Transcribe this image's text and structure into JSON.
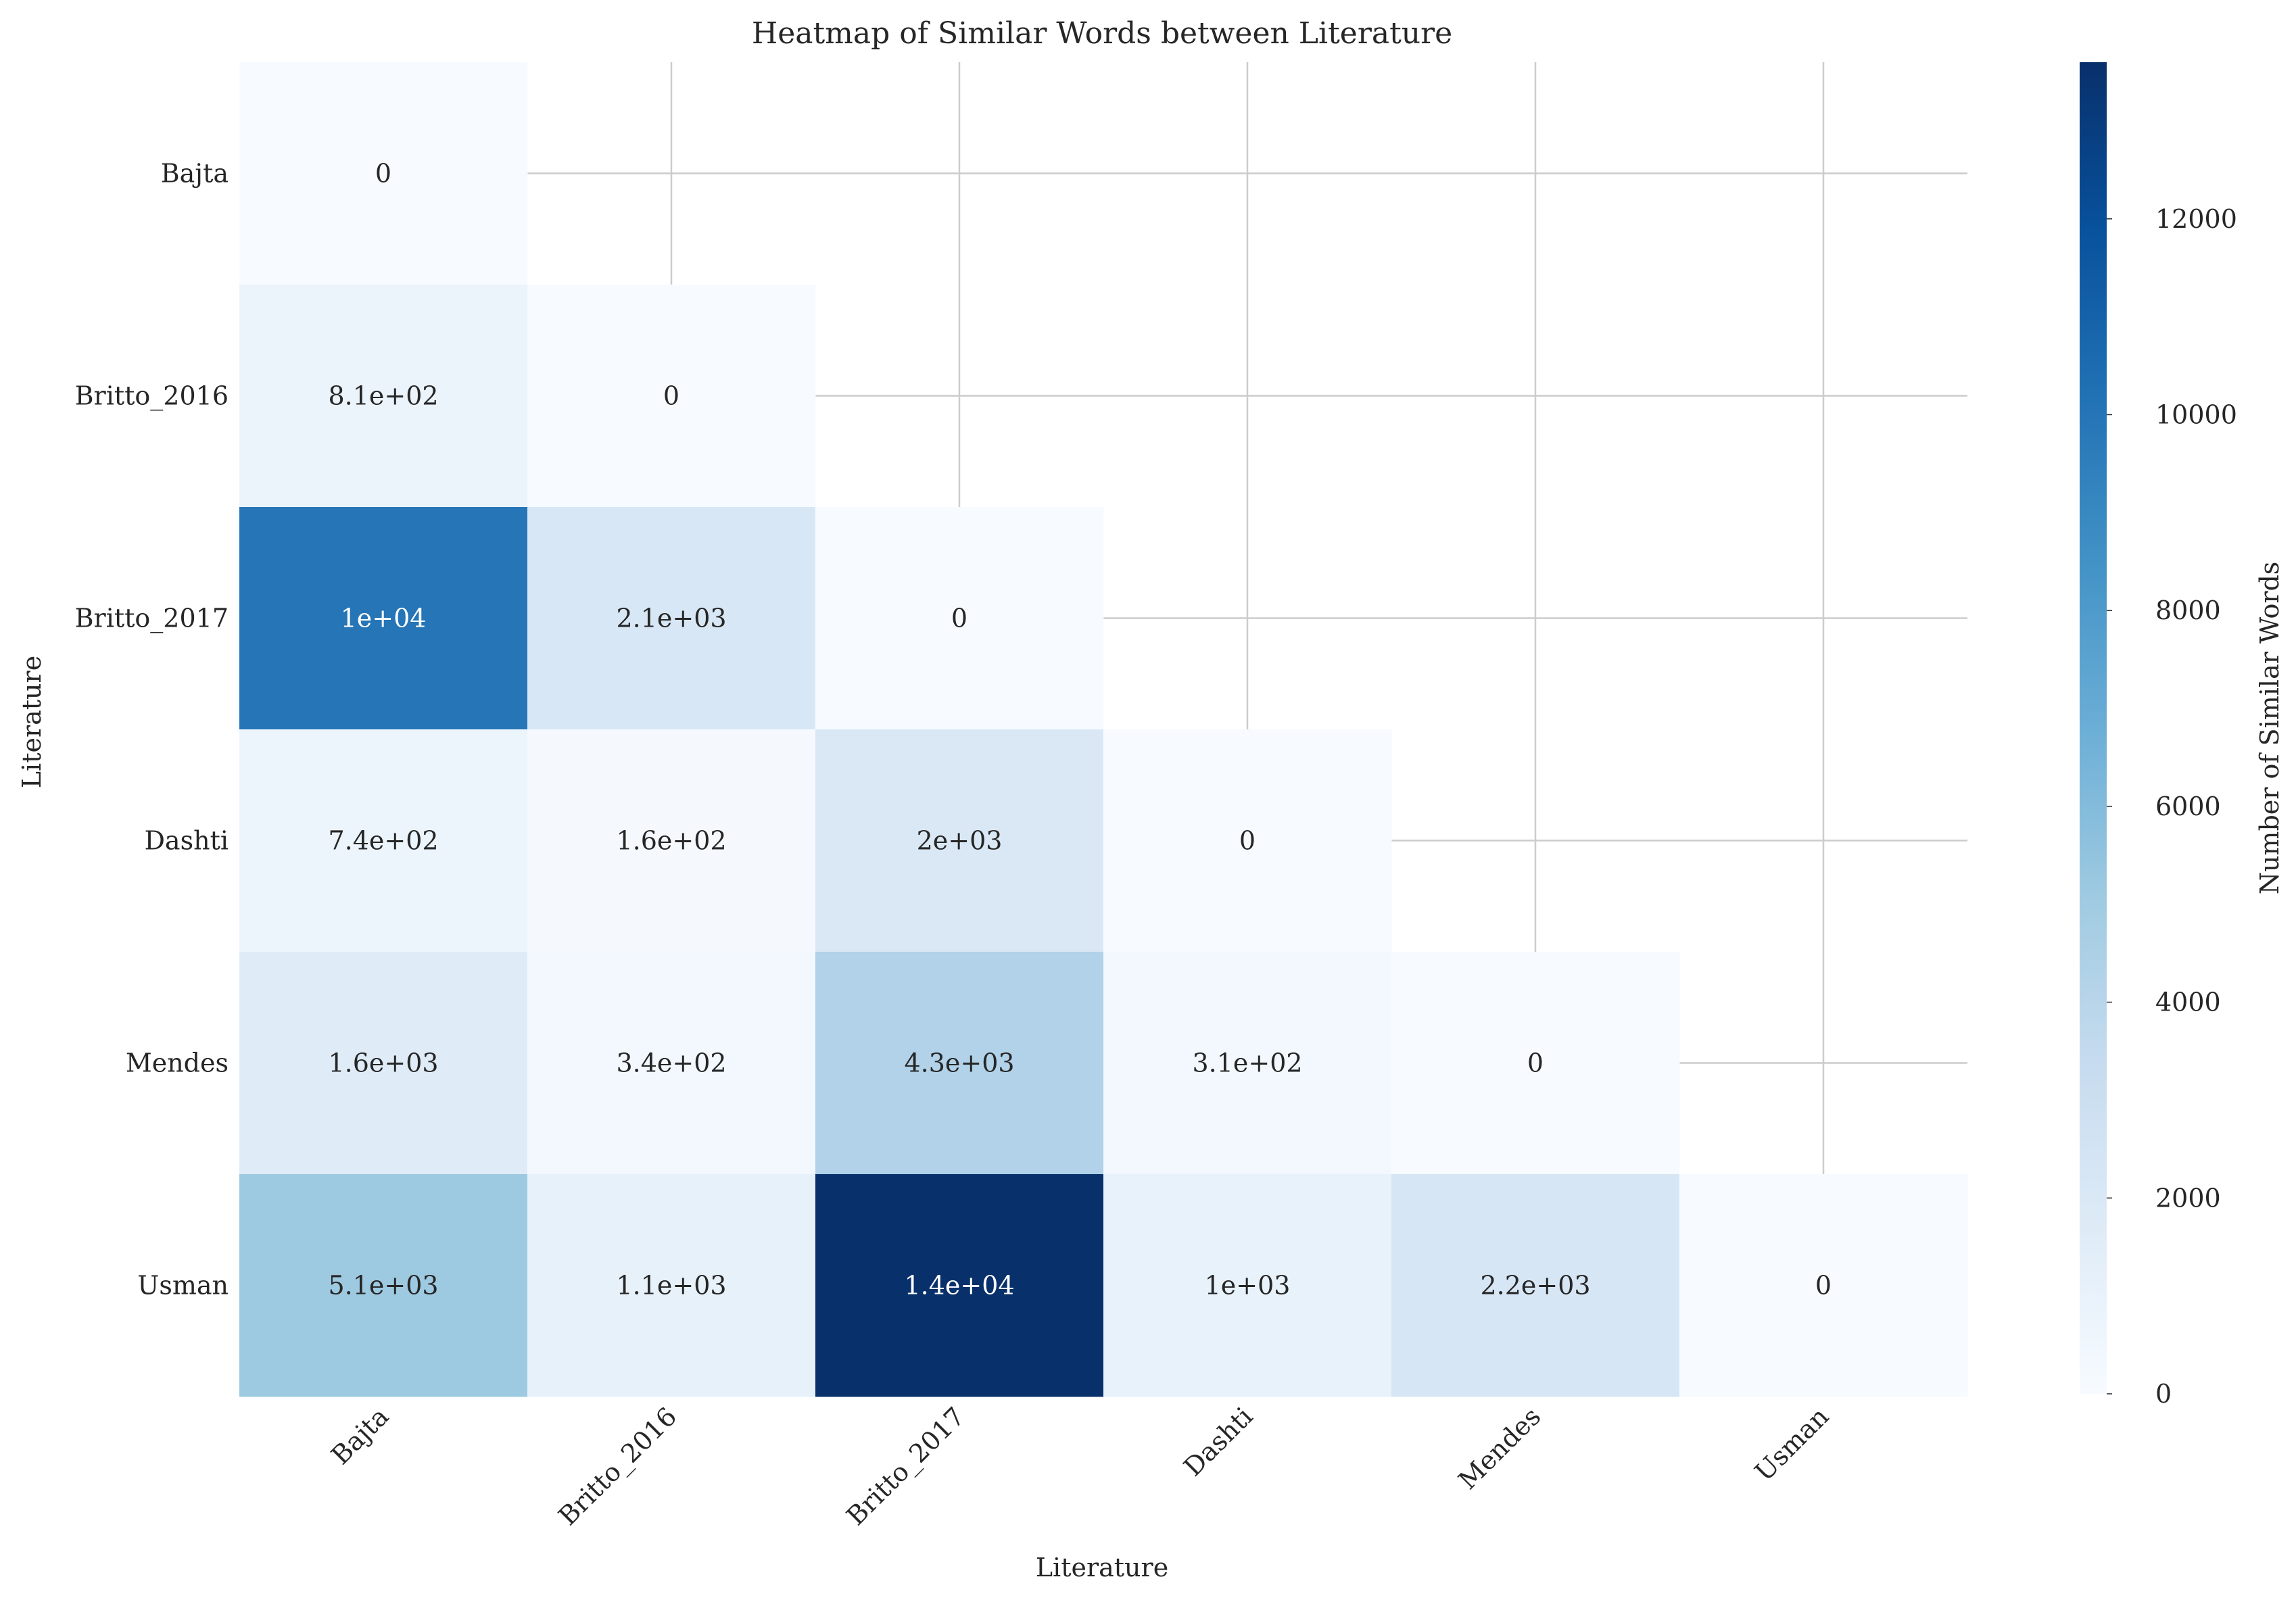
{
  "chart_data": {
    "type": "heatmap",
    "title": "Heatmap of Similar Words between Literature",
    "xlabel": "Literature",
    "ylabel": "Literature",
    "row_labels": [
      "Bajta",
      "Britto_2016",
      "Britto_2017",
      "Dashti",
      "Mendes",
      "Usman"
    ],
    "col_labels": [
      "Bajta",
      "Britto_2016",
      "Britto_2017",
      "Dashti",
      "Mendes",
      "Usman"
    ],
    "values": [
      [
        0,
        null,
        null,
        null,
        null,
        null
      ],
      [
        810,
        0,
        null,
        null,
        null,
        null
      ],
      [
        10000,
        2100,
        0,
        null,
        null,
        null
      ],
      [
        740,
        160,
        2000,
        0,
        null,
        null
      ],
      [
        1600,
        340,
        4300,
        310,
        0,
        null
      ],
      [
        5100,
        1100,
        14000,
        1000,
        2200,
        0
      ]
    ],
    "annotations": [
      [
        "0",
        null,
        null,
        null,
        null,
        null
      ],
      [
        "8.1e+02",
        "0",
        null,
        null,
        null,
        null
      ],
      [
        "1e+04",
        "2.1e+03",
        "0",
        null,
        null,
        null
      ],
      [
        "7.4e+02",
        "1.6e+02",
        "2e+03",
        "0",
        null,
        null
      ],
      [
        "1.6e+03",
        "3.4e+02",
        "4.3e+03",
        "3.1e+02",
        "0",
        null
      ],
      [
        "5.1e+03",
        "1.1e+03",
        "1.4e+04",
        "1e+03",
        "2.2e+03",
        "0"
      ]
    ],
    "mask": "upper triangle",
    "colormap": "Blues",
    "colorbar": {
      "label": "Number of Similar Words",
      "range": [
        0,
        13600
      ],
      "ticks": [
        0,
        2000,
        4000,
        6000,
        8000,
        10000,
        12000
      ],
      "tick_labels": [
        "0",
        "2000",
        "4000",
        "6000",
        "8000",
        "10000",
        "12000"
      ]
    },
    "grid": true
  }
}
